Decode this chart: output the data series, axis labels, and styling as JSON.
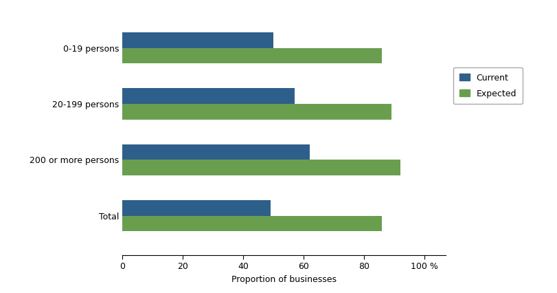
{
  "categories": [
    "Total",
    "200 or more persons",
    "20-199 persons",
    "0-19 persons"
  ],
  "current": [
    49,
    62,
    57,
    50
  ],
  "expected": [
    86,
    92,
    89,
    86
  ],
  "current_color": "#2E5F8A",
  "expected_color": "#6A9E4F",
  "xlabel": "Proportion of businesses",
  "xlim": [
    0,
    105
  ],
  "xticks": [
    0,
    20,
    40,
    60,
    80,
    100
  ],
  "xtick_labels": [
    "0",
    "20",
    "40",
    "60",
    "80",
    "100 %"
  ],
  "legend_labels": [
    "Current",
    "Expected"
  ],
  "bar_height": 0.28,
  "background_color": "#ffffff"
}
